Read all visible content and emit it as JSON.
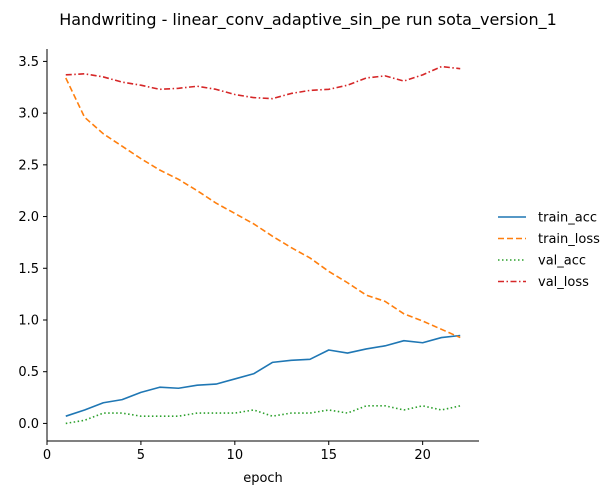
{
  "chart_data": {
    "type": "line",
    "title": "Handwriting - linear_conv_adaptive_sin_pe run sota_version_1",
    "xlabel": "epoch",
    "ylabel": "",
    "xlim": [
      0,
      23
    ],
    "ylim": [
      -0.17,
      3.62
    ],
    "xticks": [
      0,
      5,
      10,
      15,
      20
    ],
    "yticks": [
      0.0,
      0.5,
      1.0,
      1.5,
      2.0,
      2.5,
      3.0,
      3.5
    ],
    "grid": false,
    "legend_position": "right",
    "x": [
      1,
      2,
      3,
      4,
      5,
      6,
      7,
      8,
      9,
      10,
      11,
      12,
      13,
      14,
      15,
      16,
      17,
      18,
      19,
      20,
      21,
      22
    ],
    "series": [
      {
        "name": "train_acc",
        "color": "#1f77b4",
        "dash": "solid",
        "values": [
          0.07,
          0.13,
          0.2,
          0.23,
          0.3,
          0.35,
          0.34,
          0.37,
          0.38,
          0.43,
          0.48,
          0.59,
          0.61,
          0.62,
          0.71,
          0.68,
          0.72,
          0.75,
          0.8,
          0.78,
          0.83,
          0.85
        ]
      },
      {
        "name": "train_loss",
        "color": "#ff7f0e",
        "dash": "dashed",
        "values": [
          3.34,
          2.96,
          2.8,
          2.68,
          2.56,
          2.45,
          2.36,
          2.25,
          2.13,
          2.03,
          1.93,
          1.81,
          1.7,
          1.6,
          1.47,
          1.36,
          1.24,
          1.18,
          1.06,
          0.99,
          0.91,
          0.83
        ]
      },
      {
        "name": "val_acc",
        "color": "#2ca02c",
        "dash": "dotted",
        "values": [
          0.0,
          0.03,
          0.1,
          0.1,
          0.07,
          0.07,
          0.07,
          0.1,
          0.1,
          0.1,
          0.13,
          0.07,
          0.1,
          0.1,
          0.13,
          0.1,
          0.17,
          0.17,
          0.13,
          0.17,
          0.13,
          0.17
        ]
      },
      {
        "name": "val_loss",
        "color": "#d62728",
        "dash": "dashdot",
        "values": [
          3.37,
          3.38,
          3.35,
          3.3,
          3.27,
          3.23,
          3.24,
          3.26,
          3.23,
          3.18,
          3.15,
          3.14,
          3.19,
          3.22,
          3.23,
          3.27,
          3.34,
          3.36,
          3.31,
          3.37,
          3.45,
          3.43
        ]
      }
    ]
  }
}
